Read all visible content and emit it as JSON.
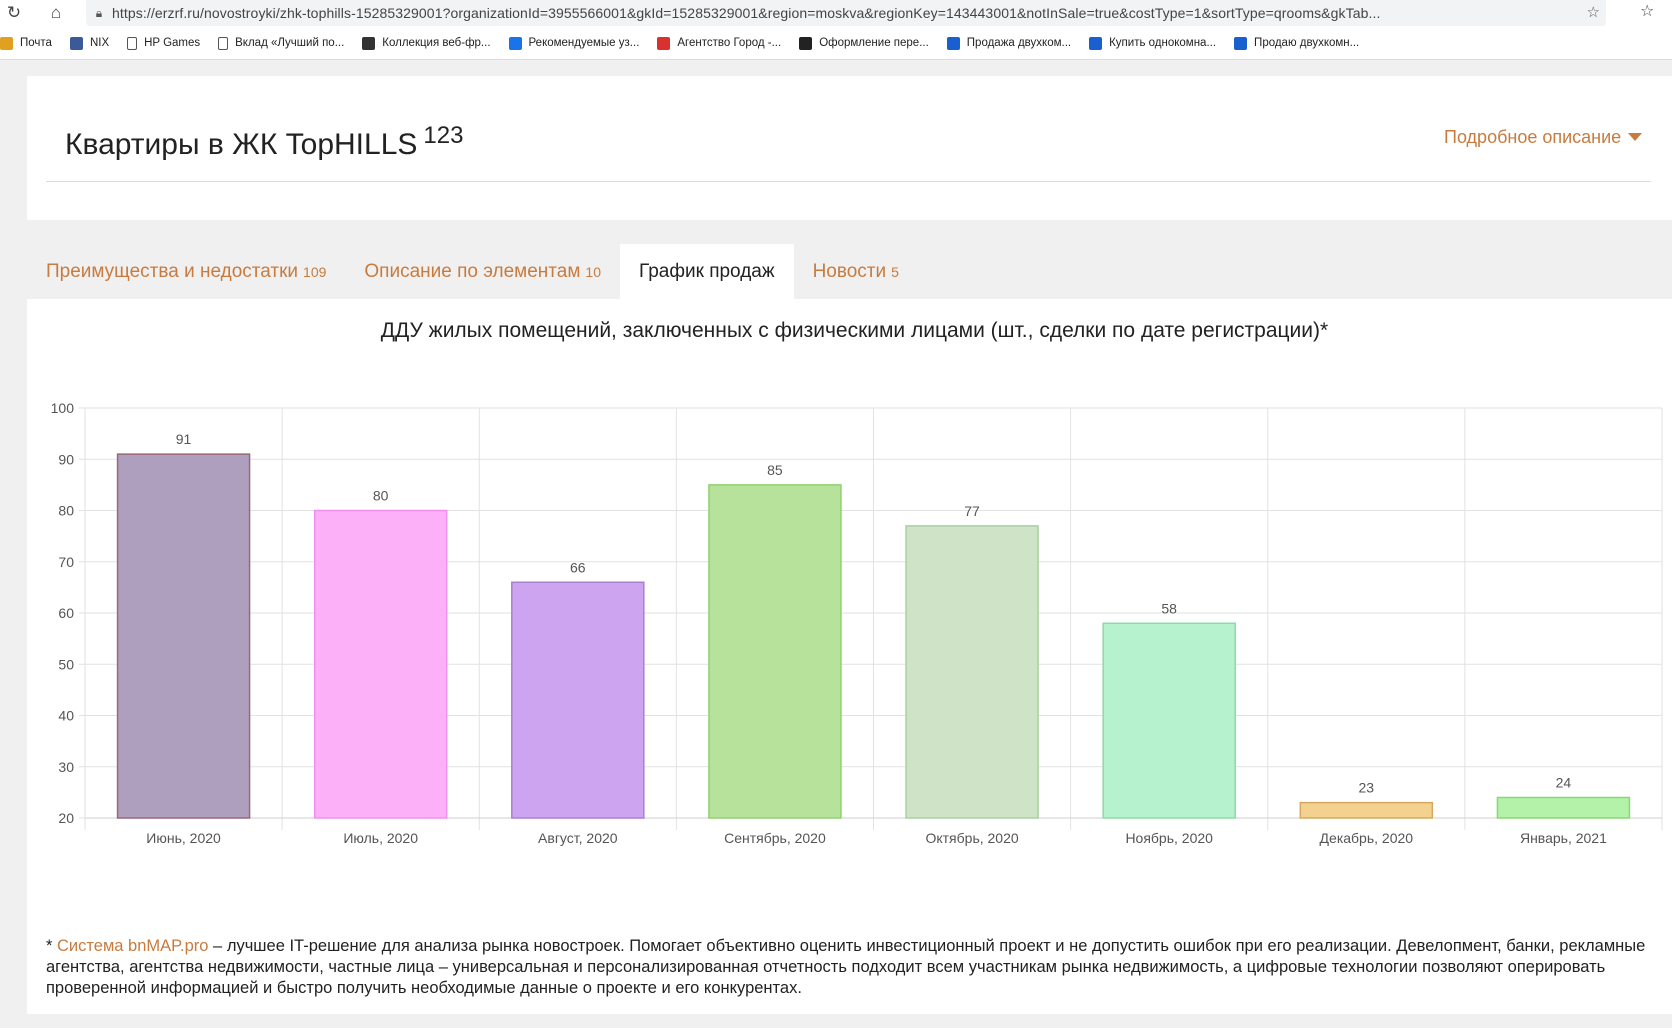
{
  "browser": {
    "url": "https://erzrf.ru/novostroyki/zhk-tophills-15285329001?organizationId=3955566001&gkId=15285329001&region=moskva&regionKey=143443001&notInSale=true&costType=1&sortType=qrooms&gkTab...",
    "bookmarks": [
      {
        "label": "Почта",
        "icon": "mail-icon",
        "color": "#e0a020"
      },
      {
        "label": "NIX",
        "icon": "nix-icon",
        "color": "#3a5a9a"
      },
      {
        "label": "HP Games",
        "icon": "page-icon",
        "color": "#ffffff"
      },
      {
        "label": "Вклад «Лучший по...",
        "icon": "page-icon",
        "color": "#ffffff"
      },
      {
        "label": "Коллекция веб-фр...",
        "icon": "collection-icon",
        "color": "#333333"
      },
      {
        "label": "Рекомендуемые уз...",
        "icon": "bing-icon",
        "color": "#1a73e8"
      },
      {
        "label": "Агентство Город -...",
        "icon": "agency-icon",
        "color": "#d93030"
      },
      {
        "label": "Оформление пере...",
        "icon": "plus-icon",
        "color": "#222222"
      },
      {
        "label": "Продажа двухком...",
        "icon": "avito-icon",
        "color": "#1a5fd0"
      },
      {
        "label": "Купить однокомна...",
        "icon": "avito-icon",
        "color": "#1a5fd0"
      },
      {
        "label": "Продаю двухкомн...",
        "icon": "avito-icon",
        "color": "#1a5fd0"
      }
    ]
  },
  "header": {
    "title": "Квартиры в ЖК TopHILLS",
    "title_count": "123",
    "detail_link": "Подробное описание"
  },
  "tabs": [
    {
      "label": "Преимущества и недостатки",
      "count": "109",
      "active": false
    },
    {
      "label": "Описание по элементам",
      "count": "10",
      "active": false
    },
    {
      "label": "График продаж",
      "count": "",
      "active": true
    },
    {
      "label": "Новости",
      "count": "5",
      "active": false
    }
  ],
  "chart_title": "ДДУ жилых помещений, заключенных с физическими лицами (шт., сделки по дате регистрации)*",
  "chart_data": {
    "type": "bar",
    "title": "ДДУ жилых помещений, заключенных с физическими лицами (шт., сделки по дате регистрации)*",
    "categories": [
      "Июнь, 2020",
      "Июль, 2020",
      "Август, 2020",
      "Сентябрь, 2020",
      "Октябрь, 2020",
      "Ноябрь, 2020",
      "Декабрь, 2020",
      "Январь, 2021"
    ],
    "values": [
      91,
      80,
      66,
      85,
      77,
      58,
      23,
      24
    ],
    "ylim": [
      20,
      100
    ],
    "yticks": [
      20,
      30,
      40,
      50,
      60,
      70,
      80,
      90,
      100
    ],
    "grid": true,
    "bar_fills": [
      "#ae9fbe",
      "#fcb0f8",
      "#cda4f0",
      "#b6e29c",
      "#cfe4c7",
      "#b6f2cd",
      "#f2d28e",
      "#b3f2a8"
    ],
    "bar_strokes": [
      "#9a6878",
      "#f090ee",
      "#a880d0",
      "#90d070",
      "#a8d0a0",
      "#90d8a8",
      "#d8a860",
      "#88d878"
    ]
  },
  "footnote": {
    "prefix": "* ",
    "link": "Система bnMAP.pro",
    "text": " – лучшее IT-решение для анализа рынка новостроек. Помогает объективно оценить инвестиционный проект и не допустить ошибок при его реализации. Девелопмент, банки, рекламные агентства, агентства недвижимости, частные лица – универсальная и персонализированная отчетность подходит всем участникам рынка недвижимость, а цифровые технологии позволяют оперировать проверенной информацией и быстро получить необходимые данные о проекте и его конкурентах."
  }
}
